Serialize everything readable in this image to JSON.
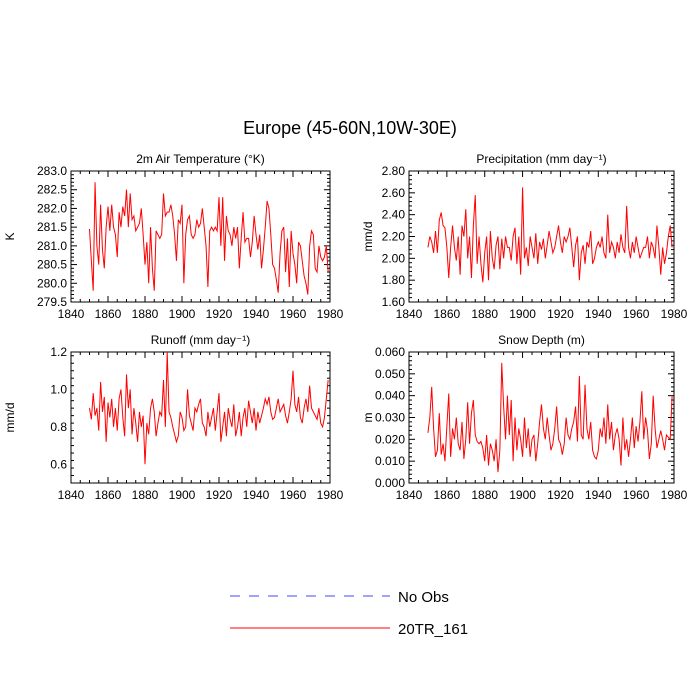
{
  "title": "Europe (45-60N,10W-30E)",
  "legend": {
    "items": [
      {
        "label": "No Obs",
        "color": "#4444ff",
        "dash": true
      },
      {
        "label": "20TR_161",
        "color": "#ff0000",
        "dash": false
      }
    ]
  },
  "chart_data": [
    {
      "type": "line",
      "title": "2m Air Temperature (°K)",
      "ylabel": "K",
      "xlim": [
        1840,
        1980
      ],
      "ylim": [
        279.5,
        283.0
      ],
      "yticks": [
        "279.5",
        "280.0",
        "280.5",
        "281.0",
        "281.5",
        "282.0",
        "282.5",
        "283.0"
      ],
      "ytick_values": [
        279.5,
        280.0,
        280.5,
        281.0,
        281.5,
        282.0,
        282.5,
        283.0
      ],
      "xticks": [
        1840,
        1860,
        1880,
        1900,
        1920,
        1940,
        1960,
        1980
      ],
      "series": [
        {
          "name": "20TR_161",
          "x_start": 1850,
          "x_step": 1,
          "values": [
            281.45,
            280.6,
            279.8,
            282.7,
            281.0,
            280.5,
            282.1,
            280.9,
            280.4,
            281.5,
            282.05,
            281.4,
            282.1,
            281.5,
            281.3,
            280.7,
            281.9,
            281.5,
            282.05,
            281.8,
            282.5,
            281.5,
            282.4,
            281.7,
            281.8,
            281.4,
            281.5,
            281.6,
            282.0,
            281.3,
            280.5,
            281.1,
            280.0,
            281.5,
            280.4,
            279.8,
            281.4,
            281.3,
            281.2,
            281.3,
            282.4,
            281.8,
            281.9,
            281.9,
            282.1,
            281.8,
            281.3,
            280.6,
            281.7,
            281.6,
            282.1,
            280.0,
            281.3,
            281.7,
            281.8,
            281.3,
            281.2,
            281.3,
            281.7,
            281.5,
            281.6,
            282.0,
            281.5,
            281.0,
            279.9,
            281.4,
            281.5,
            281.4,
            281.5,
            281.4,
            282.3,
            281.0,
            282.3,
            280.6,
            281.8,
            281.4,
            281.3,
            281.0,
            281.5,
            281.2,
            281.5,
            280.4,
            281.2,
            281.9,
            281.1,
            281.2,
            281.2,
            280.7,
            281.1,
            281.8,
            281.3,
            280.9,
            281.3,
            280.4,
            280.9,
            281.5,
            282.2,
            282.0,
            281.3,
            280.5,
            280.4,
            280.1,
            279.75,
            280.8,
            281.4,
            281.5,
            280.3,
            281.2,
            279.9,
            281.4,
            280.8,
            280.5,
            280.0,
            281.1,
            281.0,
            280.6,
            280.2,
            280.0,
            279.7,
            281.0,
            281.4,
            281.3,
            280.4,
            280.3,
            281.0,
            280.7,
            280.6,
            280.7,
            281.0,
            280.3
          ]
        }
      ]
    },
    {
      "type": "line",
      "title": "Precipitation (mm day⁻¹)",
      "ylabel": "mm/d",
      "xlim": [
        1840,
        1980
      ],
      "ylim": [
        1.6,
        2.8
      ],
      "yticks": [
        "1.60",
        "1.80",
        "2.00",
        "2.20",
        "2.40",
        "2.60",
        "2.80"
      ],
      "ytick_values": [
        1.6,
        1.8,
        2.0,
        2.2,
        2.4,
        2.6,
        2.8
      ],
      "xticks": [
        1840,
        1860,
        1880,
        1900,
        1920,
        1940,
        1960,
        1980
      ],
      "series": [
        {
          "name": "20TR_161",
          "x_start": 1850,
          "x_step": 1,
          "values": [
            2.1,
            2.2,
            2.15,
            2.05,
            2.25,
            2.05,
            2.35,
            2.42,
            2.3,
            2.28,
            2.1,
            1.82,
            2.1,
            2.3,
            2.1,
            1.98,
            2.2,
            1.85,
            2.3,
            2.2,
            2.45,
            2.0,
            2.2,
            1.82,
            2.3,
            2.58,
            1.95,
            2.2,
            1.95,
            1.78,
            2.05,
            2.2,
            1.8,
            2.25,
            2.0,
            1.9,
            2.12,
            2.2,
            1.9,
            2.18,
            2.0,
            2.2,
            2.1,
            2.1,
            1.98,
            2.2,
            2.28,
            1.95,
            2.2,
            1.85,
            2.65,
            2.0,
            2.1,
            1.93,
            2.2,
            2.1,
            2.0,
            2.23,
            1.95,
            2.15,
            2.08,
            2.18,
            2.0,
            2.12,
            2.25,
            2.15,
            2.05,
            2.1,
            2.2,
            2.3,
            2.15,
            2.05,
            2.2,
            2.15,
            2.2,
            2.28,
            2.1,
            1.92,
            2.12,
            2.2,
            1.8,
            2.05,
            2.12,
            1.95,
            2.15,
            2.1,
            2.25,
            1.95,
            2.0,
            2.1,
            2.15,
            2.1,
            2.2,
            2.05,
            2.0,
            2.4,
            2.05,
            2.15,
            2.1,
            2.0,
            2.15,
            2.05,
            2.22,
            2.1,
            2.05,
            2.48,
            2.1,
            2.0,
            2.15,
            2.05,
            2.2,
            2.1,
            2.0,
            2.05,
            2.1,
            2.1,
            2.2,
            2.0,
            2.15,
            2.1,
            2.0,
            2.3,
            2.1,
            1.85,
            2.1,
            1.95,
            2.05,
            2.2,
            2.3,
            2.1
          ]
        }
      ]
    },
    {
      "type": "line",
      "title": "Runoff (mm day⁻¹)",
      "ylabel": "mm/d",
      "xlim": [
        1840,
        1980
      ],
      "ylim": [
        0.5,
        1.2
      ],
      "yticks": [
        "0.6",
        "0.8",
        "1.0",
        "1.2"
      ],
      "ytick_values": [
        0.6,
        0.8,
        1.0,
        1.2
      ],
      "xticks": [
        1840,
        1860,
        1880,
        1900,
        1920,
        1940,
        1960,
        1980
      ],
      "series": [
        {
          "name": "20TR_161",
          "x_start": 1850,
          "x_step": 1,
          "values": [
            0.9,
            0.84,
            0.98,
            0.86,
            0.9,
            0.78,
            1.04,
            0.88,
            0.96,
            0.72,
            0.93,
            0.85,
            0.95,
            0.8,
            0.9,
            0.78,
            0.95,
            1.0,
            0.85,
            0.75,
            1.08,
            0.9,
            1.0,
            0.76,
            0.9,
            0.82,
            0.72,
            0.88,
            0.8,
            0.86,
            0.6,
            0.82,
            0.76,
            0.9,
            0.95,
            0.88,
            0.75,
            0.82,
            0.88,
            0.86,
            1.05,
            0.8,
            1.2,
            0.88,
            0.85,
            0.8,
            0.76,
            0.72,
            0.75,
            0.88,
            0.85,
            0.78,
            0.8,
            1.0,
            0.86,
            0.82,
            0.78,
            0.9,
            0.88,
            0.92,
            0.95,
            0.82,
            0.8,
            0.75,
            0.88,
            0.8,
            0.85,
            0.9,
            0.78,
            0.88,
            0.98,
            0.72,
            0.8,
            0.88,
            0.75,
            0.9,
            0.84,
            0.8,
            0.92,
            0.75,
            0.8,
            0.88,
            0.75,
            0.85,
            0.9,
            0.8,
            0.94,
            0.88,
            0.82,
            0.9,
            0.78,
            0.88,
            0.82,
            0.86,
            0.9,
            0.95,
            0.92,
            0.96,
            0.88,
            0.84,
            0.85,
            0.9,
            0.95,
            0.88,
            0.9,
            0.92,
            0.86,
            0.82,
            0.88,
            0.95,
            1.1,
            0.92,
            0.88,
            0.96,
            0.85,
            0.82,
            0.9,
            0.95,
            0.88,
            1.02,
            0.9,
            0.88,
            0.86,
            0.84,
            0.9,
            0.82,
            0.8,
            0.85,
            0.95,
            1.05
          ]
        }
      ]
    },
    {
      "type": "line",
      "title": "Snow Depth (m)",
      "ylabel": "m",
      "xlim": [
        1840,
        1980
      ],
      "ylim": [
        0.0,
        0.06
      ],
      "yticks": [
        "0.000",
        "0.010",
        "0.020",
        "0.030",
        "0.040",
        "0.050",
        "0.060"
      ],
      "ytick_values": [
        0.0,
        0.01,
        0.02,
        0.03,
        0.04,
        0.05,
        0.06
      ],
      "xticks": [
        1840,
        1860,
        1880,
        1900,
        1920,
        1940,
        1960,
        1980
      ],
      "series": [
        {
          "name": "20TR_161",
          "x_start": 1850,
          "x_step": 1,
          "values": [
            0.023,
            0.03,
            0.044,
            0.025,
            0.012,
            0.015,
            0.032,
            0.013,
            0.018,
            0.01,
            0.026,
            0.041,
            0.012,
            0.025,
            0.02,
            0.03,
            0.018,
            0.015,
            0.028,
            0.011,
            0.02,
            0.037,
            0.018,
            0.032,
            0.038,
            0.022,
            0.019,
            0.018,
            0.019,
            0.016,
            0.01,
            0.022,
            0.008,
            0.018,
            0.015,
            0.01,
            0.02,
            0.005,
            0.015,
            0.055,
            0.035,
            0.02,
            0.04,
            0.022,
            0.038,
            0.01,
            0.03,
            0.015,
            0.025,
            0.02,
            0.012,
            0.03,
            0.016,
            0.025,
            0.012,
            0.02,
            0.022,
            0.01,
            0.018,
            0.028,
            0.036,
            0.025,
            0.02,
            0.03,
            0.022,
            0.015,
            0.018,
            0.025,
            0.035,
            0.02,
            0.018,
            0.013,
            0.018,
            0.03,
            0.022,
            0.02,
            0.025,
            0.028,
            0.035,
            0.019,
            0.049,
            0.022,
            0.02,
            0.045,
            0.025,
            0.02,
            0.028,
            0.015,
            0.012,
            0.011,
            0.015,
            0.025,
            0.021,
            0.03,
            0.018,
            0.036,
            0.02,
            0.028,
            0.015,
            0.022,
            0.025,
            0.02,
            0.008,
            0.03,
            0.015,
            0.02,
            0.012,
            0.02,
            0.03,
            0.016,
            0.026,
            0.019,
            0.028,
            0.042,
            0.02,
            0.03,
            0.024,
            0.011,
            0.018,
            0.04,
            0.025,
            0.016,
            0.02,
            0.024,
            0.02,
            0.015,
            0.022,
            0.021,
            0.02,
            0.04
          ]
        }
      ]
    }
  ]
}
